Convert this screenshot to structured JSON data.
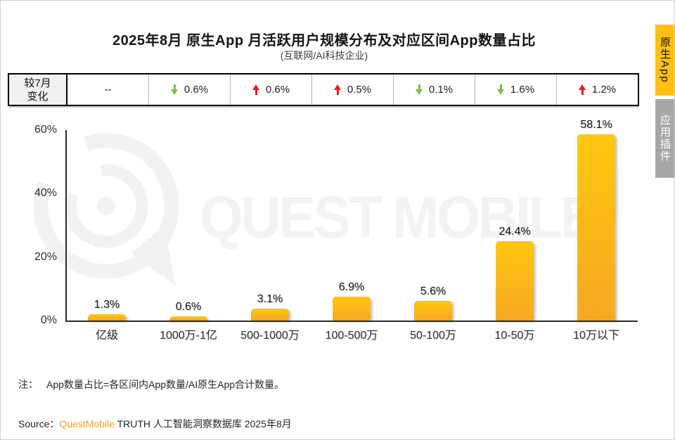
{
  "header": {
    "title": "2025年8月 原生App 月活跃用户规模分布及对应区间App数量占比",
    "subtitle": "(互联网/AI科技企业)"
  },
  "change_row": {
    "label_line1": "较7月",
    "label_line2": "变化",
    "cells": [
      {
        "direction": "none",
        "value": "--"
      },
      {
        "direction": "down",
        "value": "0.6%"
      },
      {
        "direction": "up",
        "value": "0.6%"
      },
      {
        "direction": "up",
        "value": "0.5%"
      },
      {
        "direction": "down",
        "value": "0.1%"
      },
      {
        "direction": "down",
        "value": "1.6%"
      },
      {
        "direction": "up",
        "value": "1.2%"
      }
    ]
  },
  "chart_data": {
    "type": "bar",
    "title": "2025年8月 原生App 月活跃用户规模分布及对应区间App数量占比",
    "subtitle": "(互联网/AI科技企业)",
    "categories": [
      "亿级",
      "1000万-1亿",
      "500-1000万",
      "100-500万",
      "50-100万",
      "10-50万",
      "10万以下"
    ],
    "values": [
      1.3,
      0.6,
      3.1,
      6.9,
      5.6,
      24.4,
      58.1
    ],
    "value_labels": [
      "1.3%",
      "0.6%",
      "3.1%",
      "6.9%",
      "5.6%",
      "24.4%",
      "58.1%"
    ],
    "xlabel": "",
    "ylabel": "",
    "ylim": [
      0,
      60
    ],
    "yticks": [
      {
        "value": 0,
        "label": "0%"
      },
      {
        "value": 20,
        "label": "20%"
      },
      {
        "value": 40,
        "label": "40%"
      },
      {
        "value": 60,
        "label": "60%"
      }
    ],
    "grid": false,
    "legend": null
  },
  "side_tabs": [
    {
      "label": "原生App",
      "active": true
    },
    {
      "label": "应用插件",
      "active": false
    }
  ],
  "watermark": {
    "text": "QUEST MOBILE"
  },
  "footer": {
    "note_label": "注：",
    "note_text": "App数量占比=各区间内App数量/AI原生App合计数量。",
    "source_label": "Source：",
    "source_brand": "QuestMobile",
    "source_rest": " TRUTH 人工智能洞察数据库 2025年8月"
  },
  "colors": {
    "accent_yellow": "#FFC013",
    "inactive_gray": "#A7A7A7",
    "up_red": "#E8191F",
    "down_green": "#7AC143",
    "brand_orange": "#F89C1C",
    "bar_top": "#FFC70F",
    "bar_bottom": "#F7A823",
    "watermark_gray": "#F2F2F2"
  }
}
